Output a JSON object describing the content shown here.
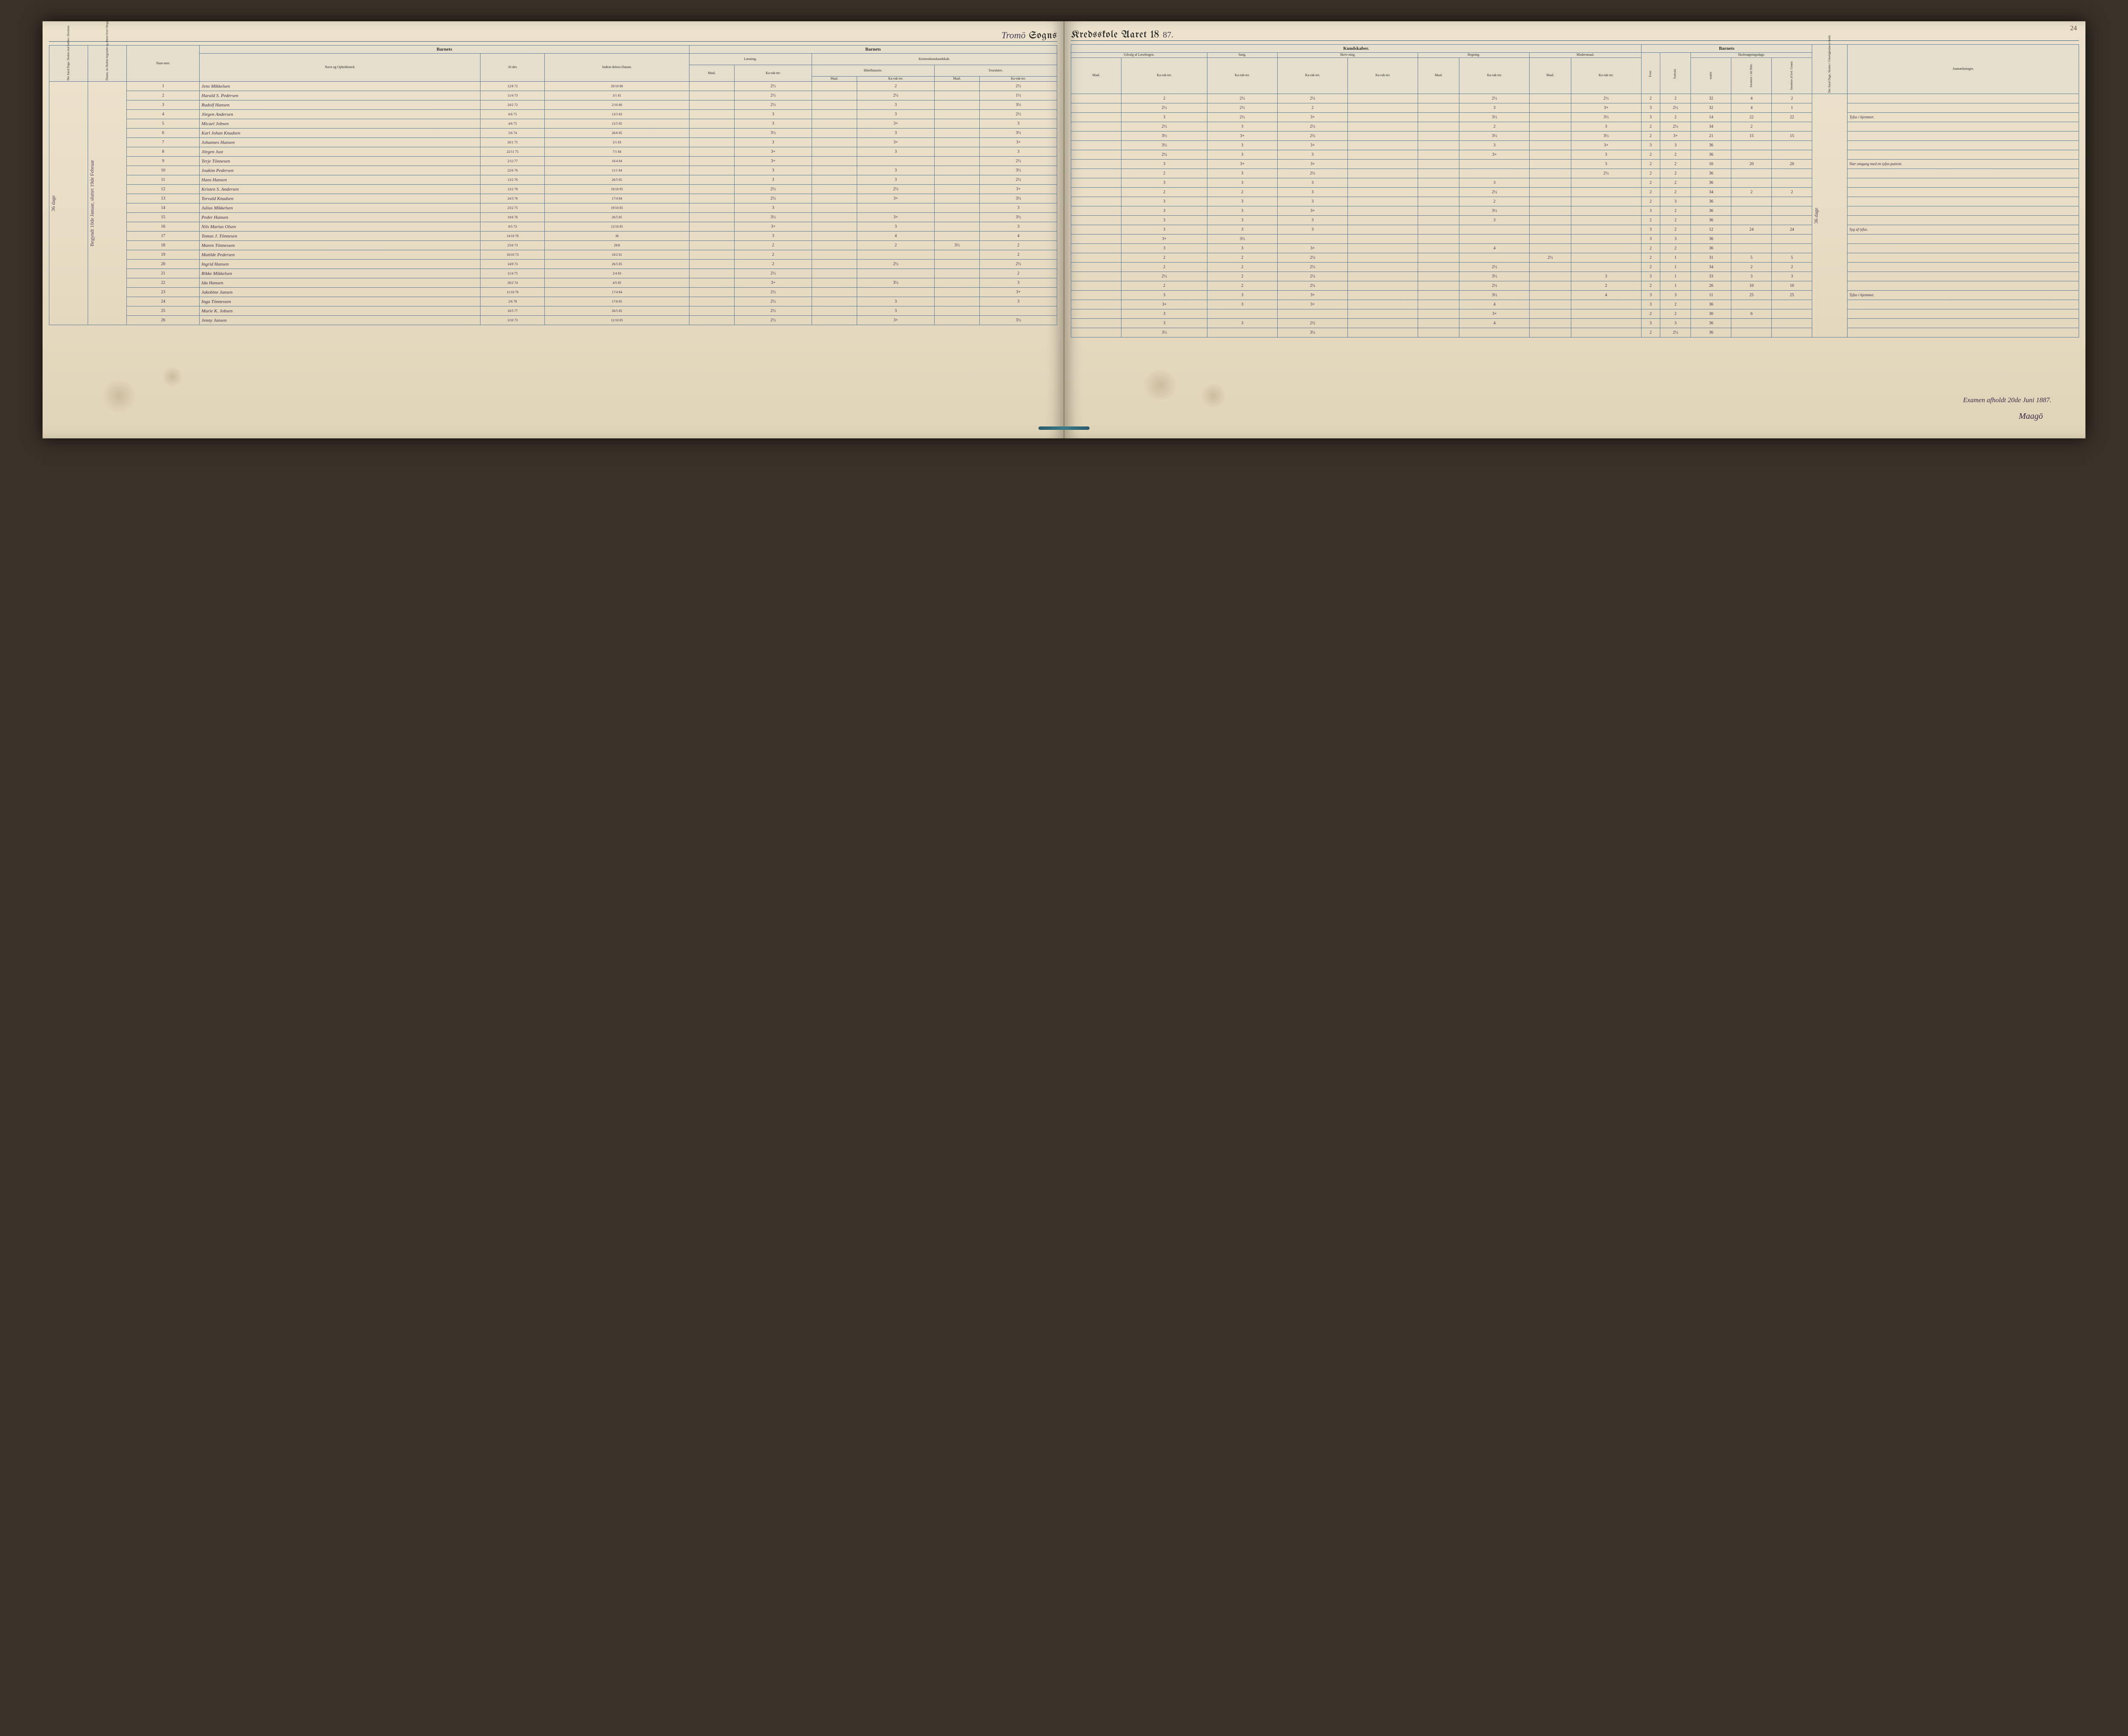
{
  "pageNumber": "24",
  "title": {
    "parish": "Tromö",
    "sogns": "Sogns",
    "kredskole": "Kredsskole Aaret 18",
    "year": "87."
  },
  "marginNote": "Begyndt 10de Januar, sluttet 19de Februar — 36 dage",
  "rightMarginNote": "36 dage",
  "headersLeft": {
    "vert1": "Det Antal Dage, Skolen skal holdes i Kredsen.",
    "vert2": "Datum, da Skolen begynder og slutter hver Omgang.",
    "num": "Num-mer.",
    "barnets": "Barnets",
    "navn": "Navn og Opholdssted.",
    "alder": "Al-der.",
    "indtr": "Indtræ-delses-Datum.",
    "laesning": "Læsning.",
    "kristendom": "Kristendomskundskab.",
    "bibel": "Bibelhistorie.",
    "troes": "Troeslære.",
    "maal": "Maal.",
    "karak": "Ka-rak-ter."
  },
  "headersRight": {
    "kundskaber": "Kundskaber.",
    "udvalg": "Udvalg af Læsebogen.",
    "sang": "Sang.",
    "skriv": "Skriv-ning.",
    "regning": "Regning.",
    "moders": "Modersmaal.",
    "barnets": "Barnets",
    "evne": "Evne.",
    "forhold": "Forhold.",
    "skole": "Skolesøgningsdage.",
    "modte": "mødte",
    "fors1": "forsømte i det Hele.",
    "fors2": "forsømte af lovl. Grund.",
    "vert1": "Det Antal Dage, Skolen i Virkeligheden er holdt.",
    "anm": "Anmærkninger.",
    "maal": "Maal.",
    "karak": "Ka-rak-ter."
  },
  "rows": [
    {
      "n": "1",
      "name": "Jens Mikkelsen",
      "ald": "12/8 72",
      "ind": "20/10 80",
      "l_m": "",
      "l_k": "2½",
      "b_m": "",
      "b_k": "2",
      "t_m": "",
      "t_k": "2½",
      "u_m": "",
      "u_k": "2",
      "sa": "2½",
      "sk": "2½",
      "r_m": "",
      "r_k": "2½",
      "mo_m": "",
      "mo_k": "2½",
      "ev": "2",
      "fo": "2",
      "md": "32",
      "f1": "4",
      "f2": "2",
      "anm": ""
    },
    {
      "n": "2",
      "name": "Harald S. Pedersen",
      "ald": "11/4 73",
      "ind": "3/1 81",
      "l_m": "",
      "l_k": "2½",
      "b_m": "",
      "b_k": "2½",
      "t_m": "",
      "t_k": "1½",
      "u_m": "",
      "u_k": "2½",
      "sa": "2½",
      "sk": "2",
      "r_m": "",
      "r_k": "3",
      "mo_m": "",
      "mo_k": "3+",
      "ev": "3",
      "fo": "2½",
      "md": "32",
      "f1": "4",
      "f2": "1",
      "anm": ""
    },
    {
      "n": "3",
      "name": "Rudolf Hansen",
      "ald": "24/2 72",
      "ind": "2/10 80",
      "l_m": "",
      "l_k": "2½",
      "b_m": "",
      "b_k": "3",
      "t_m": "",
      "t_k": "3½",
      "u_m": "",
      "u_k": "3",
      "sa": "2½",
      "sk": "3+",
      "r_m": "",
      "r_k": "3½",
      "mo_m": "",
      "mo_k": "3½",
      "ev": "3",
      "fo": "2",
      "md": "14",
      "f1": "22",
      "f2": "22",
      "anm": "Tyfus i hjemmet."
    },
    {
      "n": "4",
      "name": "Jörgen Andersen",
      "ald": "6/6 75",
      "ind": "13/3 83",
      "l_m": "",
      "l_k": "3",
      "b_m": "",
      "b_k": "3",
      "t_m": "",
      "t_k": "2½",
      "u_m": "",
      "u_k": "2½",
      "sa": "3",
      "sk": "2½",
      "r_m": "",
      "r_k": "2",
      "mo_m": "",
      "mo_k": "3",
      "ev": "2",
      "fo": "2½",
      "md": "34",
      "f1": "2",
      "f2": "",
      "anm": ""
    },
    {
      "n": "5",
      "name": "Micael Jobsen",
      "ald": "4/6 75",
      "ind": "15/5 85",
      "l_m": "",
      "l_k": "3",
      "b_m": "",
      "b_k": "3+",
      "t_m": "",
      "t_k": "3",
      "u_m": "",
      "u_k": "3½",
      "sa": "3+",
      "sk": "2½",
      "r_m": "",
      "r_k": "3½",
      "mo_m": "",
      "mo_k": "3½",
      "ev": "2",
      "fo": "3+",
      "md": "21",
      "f1": "15",
      "f2": "15",
      "anm": ""
    },
    {
      "n": "6",
      "name": "Karl Johan Knudsen",
      "ald": "5/6 74",
      "ind": "26/6 85",
      "l_m": "",
      "l_k": "3½",
      "b_m": "",
      "b_k": "3",
      "t_m": "",
      "t_k": "3½",
      "u_m": "",
      "u_k": "3½",
      "sa": "3",
      "sk": "3+",
      "r_m": "",
      "r_k": "3",
      "mo_m": "",
      "mo_k": "3+",
      "ev": "3",
      "fo": "3",
      "md": "36",
      "f1": "",
      "f2": "",
      "anm": ""
    },
    {
      "n": "7",
      "name": "Johannes Hansen",
      "ald": "26/1 75",
      "ind": "5/1 83",
      "l_m": "",
      "l_k": "3",
      "b_m": "",
      "b_k": "3+",
      "t_m": "",
      "t_k": "3+",
      "u_m": "",
      "u_k": "2½",
      "sa": "3",
      "sk": "3",
      "r_m": "",
      "r_k": "3+",
      "mo_m": "",
      "mo_k": "3",
      "ev": "2",
      "fo": "2",
      "md": "36",
      "f1": "",
      "f2": "",
      "anm": ""
    },
    {
      "n": "8",
      "name": "Jörgen Just",
      "ald": "22/11 75",
      "ind": "7/1 84",
      "l_m": "",
      "l_k": "3+",
      "b_m": "",
      "b_k": "3",
      "t_m": "",
      "t_k": "3",
      "u_m": "",
      "u_k": "3",
      "sa": "3+",
      "sk": "3+",
      "r_m": "",
      "r_k": "",
      "mo_m": "",
      "mo_k": "3",
      "ev": "2",
      "fo": "2",
      "md": "16",
      "f1": "20",
      "f2": "20",
      "anm": "Nær omgang med en tyfus-patient."
    },
    {
      "n": "9",
      "name": "Terje Tönnesen",
      "ald": "2/12 77",
      "ind": "16/4 84",
      "l_m": "",
      "l_k": "3+",
      "b_m": "",
      "b_k": "",
      "t_m": "",
      "t_k": "2½",
      "u_m": "",
      "u_k": "2",
      "sa": "3",
      "sk": "2½",
      "r_m": "",
      "r_k": "",
      "mo_m": "",
      "mo_k": "2½",
      "ev": "2",
      "fo": "2",
      "md": "36",
      "f1": "",
      "f2": "",
      "anm": ""
    },
    {
      "n": "10",
      "name": "Joakim Pedersen",
      "ald": "22/6 76",
      "ind": "11/1 84",
      "l_m": "",
      "l_k": "3",
      "b_m": "",
      "b_k": "3",
      "t_m": "",
      "t_k": "3½",
      "u_m": "",
      "u_k": "3",
      "sa": "3",
      "sk": "3",
      "r_m": "",
      "r_k": "3",
      "mo_m": "",
      "mo_k": "",
      "ev": "2",
      "fo": "2",
      "md": "36",
      "f1": "",
      "f2": "",
      "anm": ""
    },
    {
      "n": "11",
      "name": "Hans Hansen",
      "ald": "13/2 76",
      "ind": "26/5 85",
      "l_m": "",
      "l_k": "3",
      "b_m": "",
      "b_k": "3",
      "t_m": "",
      "t_k": "2½",
      "u_m": "",
      "u_k": "2",
      "sa": "2",
      "sk": "3",
      "r_m": "",
      "r_k": "2½",
      "mo_m": "",
      "mo_k": "",
      "ev": "2",
      "fo": "2",
      "md": "34",
      "f1": "2",
      "f2": "2",
      "anm": ""
    },
    {
      "n": "12",
      "name": "Kristen S. Andersen",
      "ald": "12/2 78",
      "ind": "10/10 85",
      "l_m": "",
      "l_k": "2½",
      "b_m": "",
      "b_k": "2½",
      "t_m": "",
      "t_k": "3+",
      "u_m": "",
      "u_k": "3",
      "sa": "3",
      "sk": "3",
      "r_m": "",
      "r_k": "2",
      "mo_m": "",
      "mo_k": "",
      "ev": "2",
      "fo": "3",
      "md": "36",
      "f1": "",
      "f2": "",
      "anm": ""
    },
    {
      "n": "13",
      "name": "Torvald Knudsen",
      "ald": "24/3 76",
      "ind": "17/4 84",
      "l_m": "",
      "l_k": "2½",
      "b_m": "",
      "b_k": "3+",
      "t_m": "",
      "t_k": "3½",
      "u_m": "",
      "u_k": "3",
      "sa": "3",
      "sk": "3+",
      "r_m": "",
      "r_k": "3½",
      "mo_m": "",
      "mo_k": "",
      "ev": "3",
      "fo": "2",
      "md": "36",
      "f1": "",
      "f2": "",
      "anm": ""
    },
    {
      "n": "14",
      "name": "Julius Mikkelsen",
      "ald": "23/2 75",
      "ind": "19/10 85",
      "l_m": "",
      "l_k": "3",
      "b_m": "",
      "b_k": "",
      "t_m": "",
      "t_k": "3",
      "u_m": "",
      "u_k": "3",
      "sa": "3",
      "sk": "3",
      "r_m": "",
      "r_k": "3",
      "mo_m": "",
      "mo_k": "",
      "ev": "2",
      "fo": "2",
      "md": "36",
      "f1": "",
      "f2": "",
      "anm": ""
    },
    {
      "n": "15",
      "name": "Peder Hansen",
      "ald": "10/6 76",
      "ind": "26/5 85",
      "l_m": "",
      "l_k": "3½",
      "b_m": "",
      "b_k": "3+",
      "t_m": "",
      "t_k": "3½",
      "u_m": "",
      "u_k": "3",
      "sa": "3",
      "sk": "3",
      "r_m": "",
      "r_k": "",
      "mo_m": "",
      "mo_k": "",
      "ev": "3",
      "fo": "2",
      "md": "12",
      "f1": "24",
      "f2": "24",
      "anm": "Syg af tyfus."
    },
    {
      "n": "16",
      "name": "Nils Marius Olsen",
      "ald": "9/5 73",
      "ind": "12/10 85",
      "l_m": "",
      "l_k": "3+",
      "b_m": "",
      "b_k": "3",
      "t_m": "",
      "t_k": "3",
      "u_m": "",
      "u_k": "3+",
      "sa": "3½",
      "sk": "",
      "r_m": "",
      "r_k": "",
      "mo_m": "",
      "mo_k": "",
      "ev": "3",
      "fo": "3",
      "md": "36",
      "f1": "",
      "f2": "",
      "anm": ""
    },
    {
      "n": "17",
      "name": "Tomas J. Tönnesen",
      "ald": "14/10 78",
      "ind": "36",
      "l_m": "",
      "l_k": "3",
      "b_m": "",
      "b_k": "4",
      "t_m": "",
      "t_k": "4",
      "u_m": "",
      "u_k": "3",
      "sa": "3",
      "sk": "3+",
      "r_m": "",
      "r_k": "4",
      "mo_m": "",
      "mo_k": "",
      "ev": "2",
      "fo": "2",
      "md": "36",
      "f1": "",
      "f2": "",
      "anm": ""
    },
    {
      "n": "18",
      "name": "Maren Tönnessen",
      "ald": "25/6 73",
      "ind": "29/8",
      "l_m": "",
      "l_k": "2",
      "b_m": "",
      "b_k": "2",
      "t_m": "3½",
      "t_k": "2",
      "u_m": "",
      "u_k": "2",
      "sa": "2",
      "sk": "2½",
      "r_m": "",
      "r_k": "",
      "mo_m": "2½",
      "mo_k": "",
      "ev": "2",
      "fo": "1",
      "md": "31",
      "f1": "5",
      "f2": "5",
      "anm": ""
    },
    {
      "n": "19",
      "name": "Matilde Pedersen",
      "ald": "16/10 73",
      "ind": "10/2 81",
      "l_m": "",
      "l_k": "2",
      "b_m": "",
      "b_k": "",
      "t_m": "",
      "t_k": "2",
      "u_m": "",
      "u_k": "2",
      "sa": "2",
      "sk": "2½",
      "r_m": "",
      "r_k": "2½",
      "mo_m": "",
      "mo_k": "",
      "ev": "2",
      "fo": "1",
      "md": "34",
      "f1": "2",
      "f2": "2",
      "anm": ""
    },
    {
      "n": "20",
      "name": "Ingrid Hansen",
      "ald": "14/9 73",
      "ind": "26/5 85",
      "l_m": "",
      "l_k": "2",
      "b_m": "",
      "b_k": "2½",
      "t_m": "",
      "t_k": "2½",
      "u_m": "",
      "u_k": "2½",
      "sa": "2",
      "sk": "2½",
      "r_m": "",
      "r_k": "3½",
      "mo_m": "",
      "mo_k": "3",
      "ev": "3",
      "fo": "1",
      "md": "33",
      "f1": "3",
      "f2": "3",
      "anm": ""
    },
    {
      "n": "21",
      "name": "Rikke Mikkelsen",
      "ald": "11/4 75",
      "ind": "2/4 83",
      "l_m": "",
      "l_k": "2½",
      "b_m": "",
      "b_k": "",
      "t_m": "",
      "t_k": "2",
      "u_m": "",
      "u_k": "2",
      "sa": "2",
      "sk": "2½",
      "r_m": "",
      "r_k": "2½",
      "mo_m": "",
      "mo_k": "2",
      "ev": "2",
      "fo": "1",
      "md": "26",
      "f1": "10",
      "f2": "10",
      "anm": ""
    },
    {
      "n": "22",
      "name": "Ida Hansen",
      "ald": "26/2 74",
      "ind": "4/5 85",
      "l_m": "",
      "l_k": "3+",
      "b_m": "",
      "b_k": "3½",
      "t_m": "",
      "t_k": "3",
      "u_m": "",
      "u_k": "3",
      "sa": "3",
      "sk": "3+",
      "r_m": "",
      "r_k": "3½",
      "mo_m": "",
      "mo_k": "4",
      "ev": "3",
      "fo": "3",
      "md": "11",
      "f1": "25",
      "f2": "25",
      "anm": "Tyfus i hjemmet."
    },
    {
      "n": "23",
      "name": "Jakobine Jansen",
      "ald": "11/10 76",
      "ind": "17/4 84",
      "l_m": "",
      "l_k": "2½",
      "b_m": "",
      "b_k": "",
      "t_m": "",
      "t_k": "3+",
      "u_m": "",
      "u_k": "3+",
      "sa": "3",
      "sk": "3+",
      "r_m": "",
      "r_k": "4",
      "mo_m": "",
      "mo_k": "",
      "ev": "3",
      "fo": "2",
      "md": "36",
      "f1": "",
      "f2": "",
      "anm": ""
    },
    {
      "n": "24",
      "name": "Inga Tönnessen",
      "ald": "2/6 78",
      "ind": "17/6 85",
      "l_m": "",
      "l_k": "2½",
      "b_m": "",
      "b_k": "3",
      "t_m": "",
      "t_k": "3",
      "u_m": "",
      "u_k": "3",
      "sa": "",
      "sk": "",
      "r_m": "",
      "r_k": "3+",
      "mo_m": "",
      "mo_k": "",
      "ev": "2",
      "fo": "2",
      "md": "30",
      "f1": "6",
      "f2": "",
      "anm": ""
    },
    {
      "n": "25",
      "name": "Marie K. Jobsen",
      "ald": "16/5 77",
      "ind": "26/5 85",
      "l_m": "",
      "l_k": "2½",
      "b_m": "",
      "b_k": "3",
      "t_m": "",
      "t_k": "",
      "u_m": "",
      "u_k": "3",
      "sa": "3",
      "sk": "2½",
      "r_m": "",
      "r_k": "4",
      "mo_m": "",
      "mo_k": "",
      "ev": "3",
      "fo": "3",
      "md": "36",
      "f1": "",
      "f2": "",
      "anm": ""
    },
    {
      "n": "26",
      "name": "Jenny Jansen",
      "ald": "3/10 73",
      "ind": "12/10 85",
      "l_m": "",
      "l_k": "2½",
      "b_m": "",
      "b_k": "3+",
      "t_m": "",
      "t_k": "3½",
      "u_m": "",
      "u_k": "3½",
      "sa": "",
      "sk": "3½",
      "r_m": "",
      "r_k": "",
      "mo_m": "",
      "mo_k": "",
      "ev": "2",
      "fo": "2½",
      "md": "36",
      "f1": "",
      "f2": "",
      "anm": ""
    }
  ],
  "footer": "Examen afholdt 20de Juni 1887.",
  "signature": "Maagö"
}
